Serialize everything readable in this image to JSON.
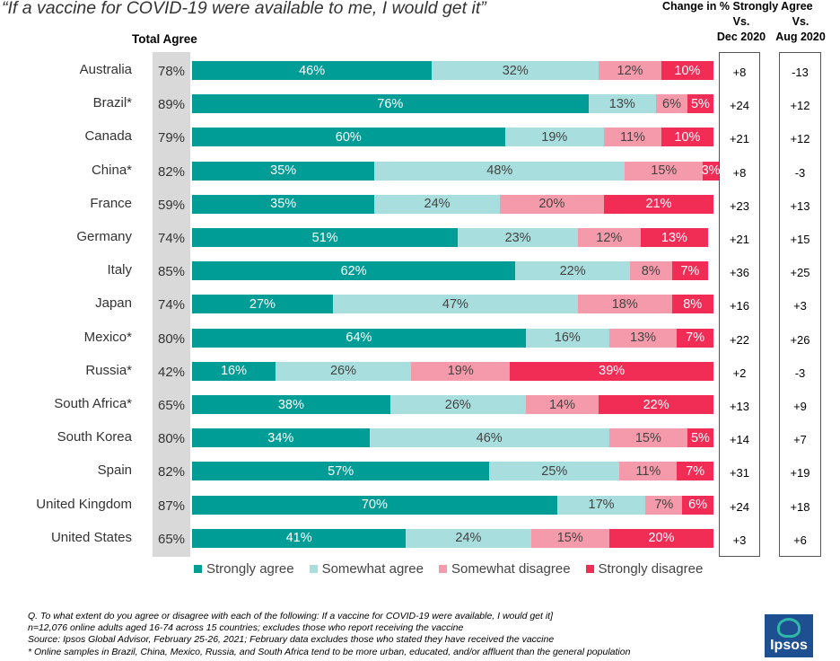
{
  "title": "“If a vaccine for COVID-19 were available to me, I would get it”",
  "change_header": "Change in % Strongly Agree",
  "vs_dec": [
    "Vs.",
    "Dec 2020"
  ],
  "vs_aug": [
    "Vs.",
    "Aug 2020"
  ],
  "total_agree_label": "Total Agree",
  "colors": {
    "strongly_agree": "#009d96",
    "somewhat_agree": "#a8dedd",
    "somewhat_disagree": "#f49aaa",
    "strongly_disagree": "#f22d55",
    "total_bg": "#d9d9d9"
  },
  "chart_data": {
    "type": "bar",
    "orientation": "horizontal-stacked",
    "title": "“If a vaccine for COVID-19 were available to me, I would get it”",
    "categories": [
      "Australia",
      "Brazil*",
      "Canada",
      "China*",
      "France",
      "Germany",
      "Italy",
      "Japan",
      "Mexico*",
      "Russia*",
      "South Africa*",
      "South Korea",
      "Spain",
      "United Kingdom",
      "United States"
    ],
    "series": [
      {
        "name": "Strongly agree",
        "key": "sa",
        "values": [
          46,
          76,
          60,
          35,
          35,
          51,
          62,
          27,
          64,
          16,
          38,
          34,
          57,
          70,
          41
        ]
      },
      {
        "name": "Somewhat agree",
        "key": "swa",
        "values": [
          32,
          13,
          19,
          48,
          24,
          23,
          22,
          47,
          16,
          26,
          26,
          46,
          25,
          17,
          24
        ]
      },
      {
        "name": "Somewhat disagree",
        "key": "swd",
        "values": [
          12,
          6,
          11,
          15,
          20,
          12,
          8,
          18,
          13,
          19,
          14,
          15,
          11,
          7,
          15
        ]
      },
      {
        "name": "Strongly disagree",
        "key": "sd",
        "values": [
          10,
          5,
          10,
          3,
          21,
          13,
          7,
          8,
          7,
          39,
          22,
          5,
          7,
          6,
          20
        ]
      }
    ],
    "total_agree": [
      "78%",
      "89%",
      "79%",
      "82%",
      "59%",
      "74%",
      "85%",
      "74%",
      "80%",
      "42%",
      "65%",
      "80%",
      "82%",
      "87%",
      "65%"
    ],
    "change_vs_dec_2020": [
      "+8",
      "+24",
      "+21",
      "+8",
      "+23",
      "+21",
      "+36",
      "+16",
      "+22",
      "+2",
      "+13",
      "+14",
      "+31",
      "+24",
      "+3"
    ],
    "change_vs_aug_2020": [
      "-13",
      "+12",
      "+12",
      "-3",
      "+13",
      "+15",
      "+25",
      "+3",
      "+26",
      "-3",
      "+9",
      "+7",
      "+19",
      "+18",
      "+6"
    ],
    "legend": [
      "Strongly agree",
      "Somewhat agree",
      "Somewhat disagree",
      "Strongly disagree"
    ],
    "legend_position": "bottom"
  },
  "footnotes": [
    "Q. To what extent do you agree or disagree with each of the following: If a vaccine for COVID-19 were available, I would get it]",
    "n=12,076 online adults aged 16-74 across 15 countries; excludes those who report receiving the vaccine",
    "Source: Ipsos Global Advisor, February 25-26, 2021; February data excludes those who stated they have received the vaccine",
    "* Online samples in Brazil, China, Mexico, Russia, and South Africa tend to be more urban, educated, and/or affluent than the general population"
  ],
  "logo_text": "Ipsos"
}
